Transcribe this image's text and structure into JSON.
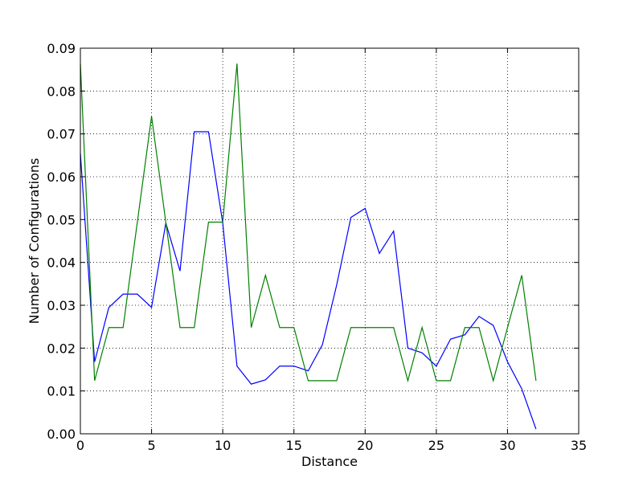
{
  "chart_data": {
    "type": "line",
    "title": "",
    "xlabel": "Distance",
    "ylabel": "Number of Configurations",
    "xlim": [
      0,
      35
    ],
    "ylim": [
      0,
      0.09
    ],
    "xticks": [
      0,
      5,
      10,
      15,
      20,
      25,
      30,
      35
    ],
    "yticks": [
      0.0,
      0.01,
      0.02,
      0.03,
      0.04,
      0.05,
      0.06,
      0.07,
      0.08,
      0.09
    ],
    "xtick_labels": [
      "0",
      "5",
      "10",
      "15",
      "20",
      "25",
      "30",
      "35"
    ],
    "ytick_labels": [
      "0.00",
      "0.01",
      "0.02",
      "0.03",
      "0.04",
      "0.05",
      "0.06",
      "0.07",
      "0.08",
      "0.09"
    ],
    "grid": true,
    "legend": "none",
    "x": [
      0,
      1,
      2,
      3,
      4,
      5,
      6,
      7,
      8,
      9,
      10,
      11,
      12,
      13,
      14,
      15,
      16,
      17,
      18,
      19,
      20,
      21,
      22,
      23,
      24,
      25,
      26,
      27,
      28,
      29,
      30,
      31,
      32
    ],
    "series": [
      {
        "color": "#0000ff",
        "values": [
          0.0655,
          0.0168,
          0.0295,
          0.0326,
          0.0326,
          0.0295,
          0.0492,
          0.038,
          0.0705,
          0.0705,
          0.0492,
          0.0158,
          0.0116,
          0.0126,
          0.0158,
          0.0158,
          0.0147,
          0.0208,
          0.0347,
          0.0505,
          0.0526,
          0.0421,
          0.0473,
          0.02,
          0.0189,
          0.0158,
          0.0221,
          0.0231,
          0.0274,
          0.0253,
          0.0168,
          0.0105,
          0.0011
        ]
      },
      {
        "color": "#008000",
        "values": [
          0.0864,
          0.0124,
          0.0248,
          0.0248,
          0.0494,
          0.0741,
          0.0494,
          0.0248,
          0.0248,
          0.0494,
          0.0494,
          0.0864,
          0.0248,
          0.037,
          0.0248,
          0.0248,
          0.0124,
          0.0124,
          0.0124,
          0.0248,
          0.0248,
          0.0248,
          0.0248,
          0.0124,
          0.0248,
          0.0124,
          0.0124,
          0.0248,
          0.0248,
          0.0124,
          0.0248,
          0.037,
          0.0124
        ]
      }
    ]
  }
}
